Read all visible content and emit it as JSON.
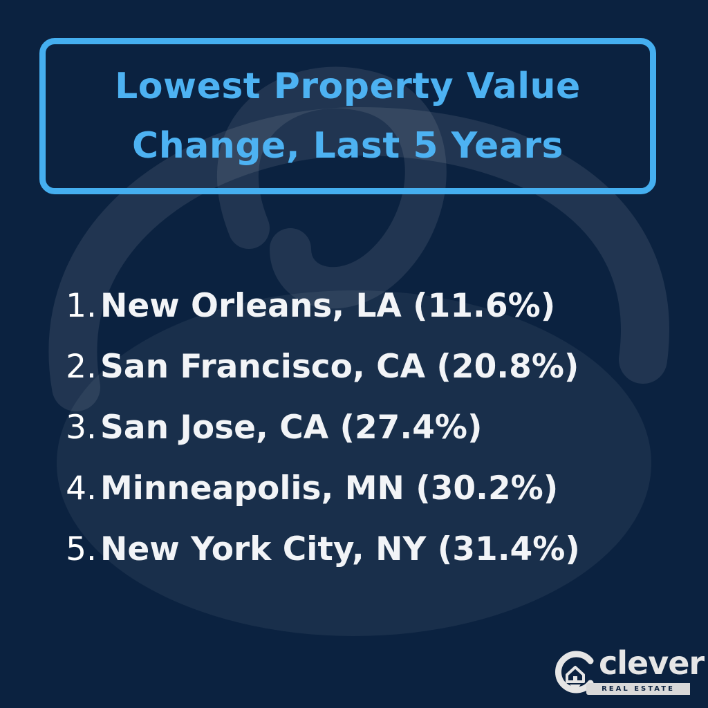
{
  "title": {
    "line1": "Lowest Property Value",
    "line2": "Change, Last 5 Years"
  },
  "list": [
    {
      "rank": "1.",
      "text": "New Orleans, LA (11.6%)"
    },
    {
      "rank": "2.",
      "text": "San Francisco, CA (20.8%)"
    },
    {
      "rank": "3.",
      "text": "San Jose, CA (27.4%)"
    },
    {
      "rank": "4.",
      "text": "Minneapolis, MN (30.2%)"
    },
    {
      "rank": "5.",
      "text": "New York City, NY (31.4%)"
    }
  ],
  "logo": {
    "word": "clever",
    "sub": "REAL ESTATE"
  },
  "colors": {
    "background": "#0b2240",
    "accent": "#45aff0",
    "text": "#f2f4f7",
    "logo": "#e6e6e6"
  },
  "icons": {
    "watermark": "house-pin-icon",
    "logo": "house-pin-icon"
  }
}
